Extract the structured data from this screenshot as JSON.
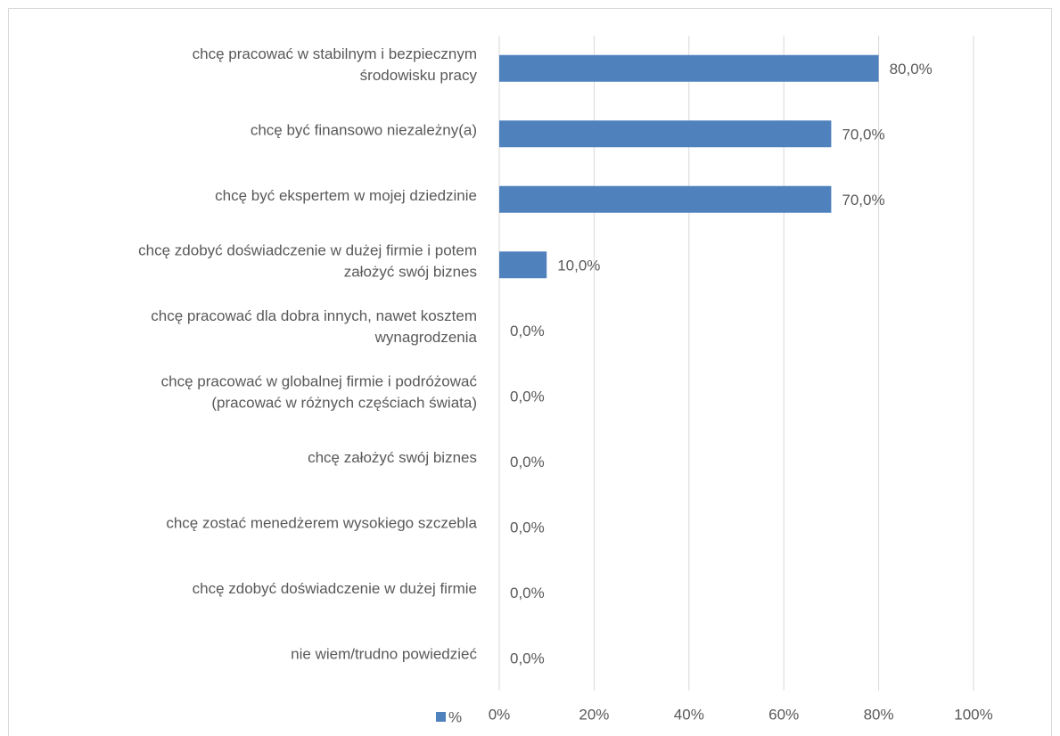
{
  "chart_data": {
    "type": "bar",
    "orientation": "horizontal",
    "categories": [
      "chcę pracować w stabilnym i bezpiecznym\nśrodowisku pracy",
      "chcę być finansowo niezależny(a)",
      "chcę być ekspertem w mojej dziedzinie",
      "chcę zdobyć doświadczenie w dużej firmie i potem\nzałożyć swój biznes",
      "chcę pracować dla dobra innych, nawet kosztem\nwynagrodzenia",
      "chcę pracować w globalnej firmie i podróżować\n(pracować w różnych częściach świata)",
      "chcę założyć swój biznes",
      "chcę zostać menedżerem wysokiego szczebla",
      "chcę zdobyć doświadczenie w dużej firmie",
      "nie wiem/trudno powiedzieć"
    ],
    "series": [
      {
        "name": "%",
        "color": "#4f81bd",
        "values": [
          80,
          70,
          70,
          10,
          0,
          0,
          0,
          0,
          0,
          0
        ],
        "value_labels": [
          "80,0%",
          "70,0%",
          "70,0%",
          "10,0%",
          "0,0%",
          "0,0%",
          "0,0%",
          "0,0%",
          "0,0%",
          "0,0%"
        ]
      }
    ],
    "xlim": [
      0,
      100
    ],
    "xticks": [
      {
        "value": 0,
        "label": "0%"
      },
      {
        "value": 20,
        "label": "20%"
      },
      {
        "value": 40,
        "label": "40%"
      },
      {
        "value": 60,
        "label": "60%"
      },
      {
        "value": 80,
        "label": "80%"
      },
      {
        "value": 100,
        "label": "100%"
      }
    ],
    "grid": true,
    "legend": "bottom"
  }
}
